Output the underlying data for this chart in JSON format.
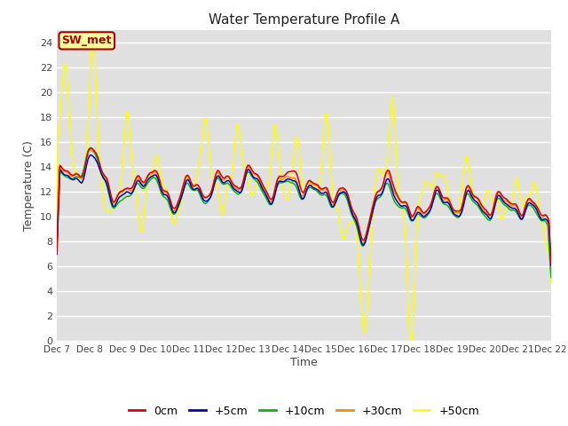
{
  "title": "Water Temperature Profile A",
  "xlabel": "Time",
  "ylabel": "Temperature (C)",
  "ylim": [
    0,
    25
  ],
  "yticks": [
    0,
    2,
    4,
    6,
    8,
    10,
    12,
    14,
    16,
    18,
    20,
    22,
    24
  ],
  "plot_bg_color": "#e0e0e0",
  "annotation_text": "SW_met",
  "annotation_color": "#aa0000",
  "annotation_bg": "#ffff99",
  "colors": {
    "0cm": "#dd0000",
    "+5cm": "#0000cc",
    "+10cm": "#00bb00",
    "+30cm": "#ff8800",
    "+50cm": "#ffff00"
  },
  "lw": 1.1,
  "xtick_labels": [
    "Dec 7",
    "Dec 8",
    "Dec 9",
    "Dec 10",
    "Dec 11",
    "Dec 12",
    "Dec 13",
    "Dec 14",
    "Dec 15",
    "Dec 16",
    "Dec 17",
    "Dec 18",
    "Dec 19",
    "Dec 20",
    "Dec 21",
    "Dec 22"
  ]
}
